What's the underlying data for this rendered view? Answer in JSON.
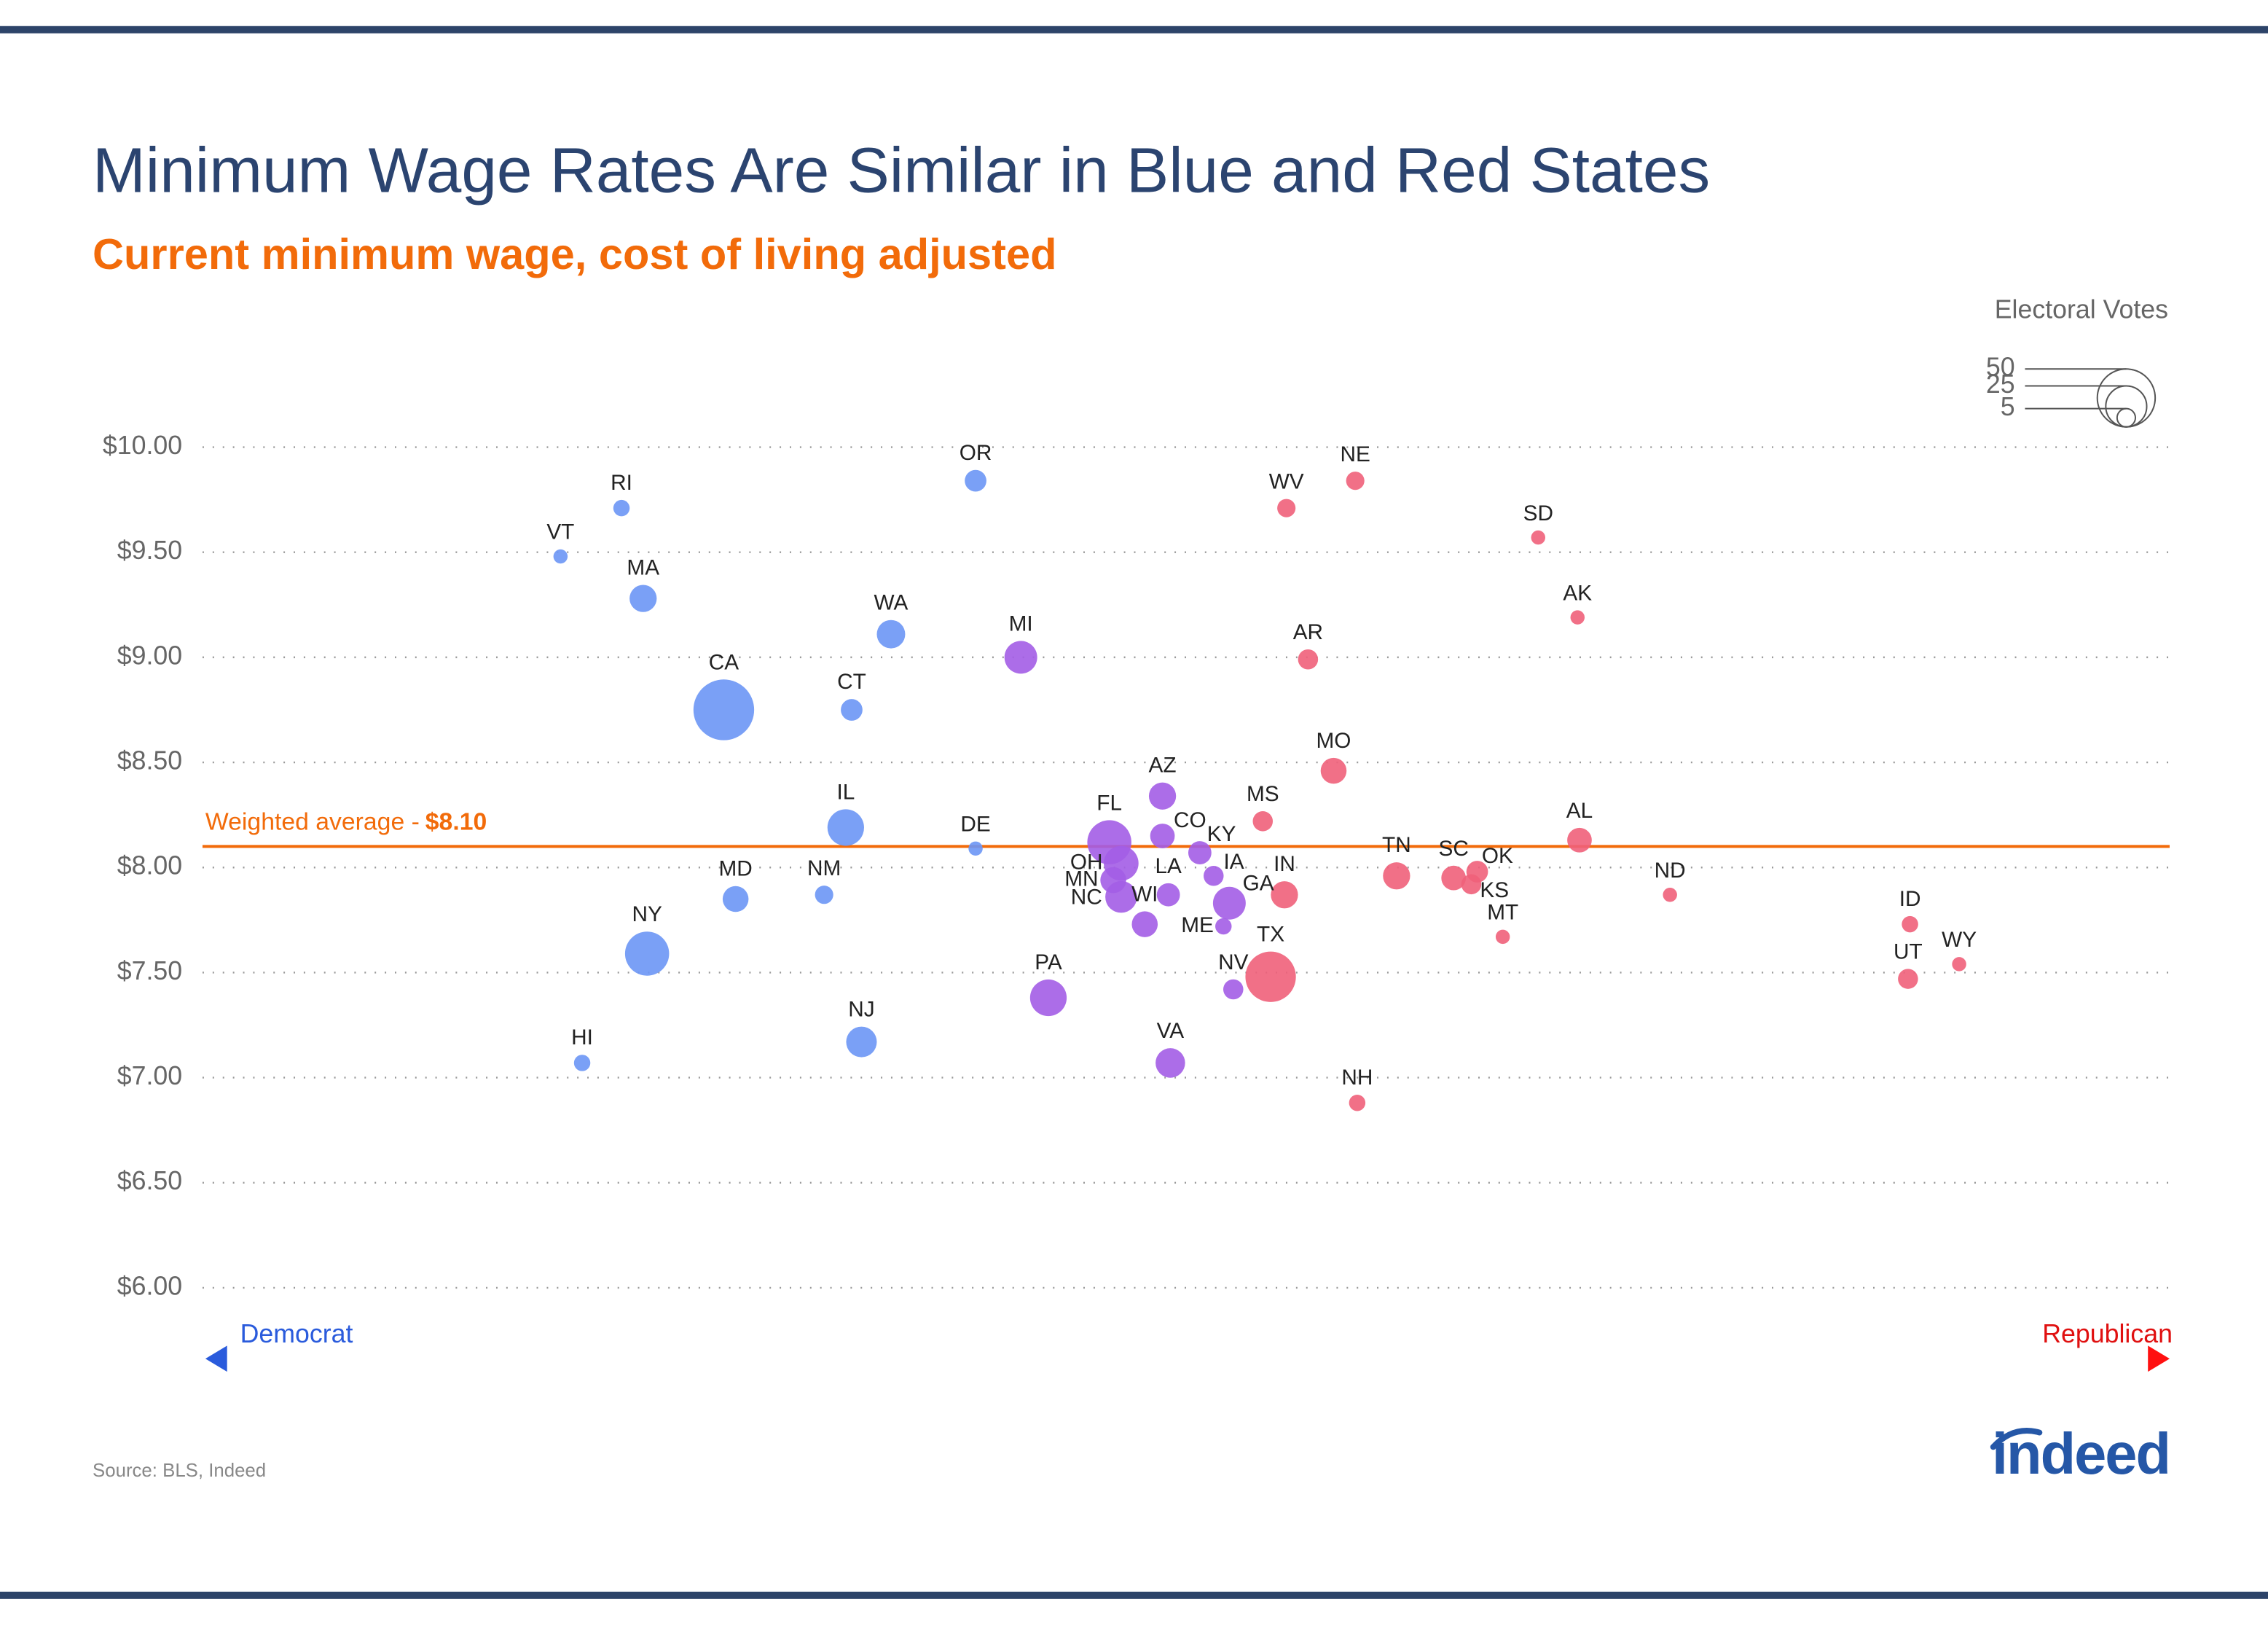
{
  "chart_data": {
    "type": "scatter",
    "title": "Minimum Wage Rates Are Similar in Blue and Red States",
    "subtitle": "Current minimum wage, cost of living adjusted",
    "size_legend_title": "Electoral Votes",
    "size_legend_values": [
      50,
      25,
      5
    ],
    "categories": [
      "VT",
      "RI",
      "MA",
      "CA",
      "HI",
      "NY",
      "MD",
      "NM",
      "IL",
      "CT",
      "WA",
      "OR",
      "DE",
      "NJ",
      "MI",
      "PA",
      "FL",
      "OH",
      "MN",
      "NC",
      "WI",
      "AZ",
      "CO",
      "LA",
      "VA",
      "KY",
      "IA",
      "ME",
      "GA",
      "NV",
      "MS",
      "TX",
      "IN",
      "WV",
      "AR",
      "NE",
      "MO",
      "NH",
      "TN",
      "SC",
      "KS",
      "OK",
      "MT",
      "SD",
      "AK",
      "AL",
      "ND",
      "ID",
      "UT",
      "WY"
    ],
    "x": [
      18.2,
      21.3,
      22.4,
      26.5,
      19.3,
      22.6,
      27.1,
      31.6,
      32.7,
      33.0,
      35.0,
      39.3,
      39.3,
      33.5,
      41.6,
      43.0,
      46.1,
      46.7,
      46.3,
      46.7,
      47.9,
      48.8,
      48.8,
      49.1,
      49.2,
      50.7,
      51.4,
      51.9,
      52.2,
      52.4,
      53.9,
      54.3,
      55.0,
      55.1,
      56.2,
      58.6,
      57.5,
      58.7,
      60.7,
      63.6,
      64.5,
      64.8,
      66.1,
      67.9,
      69.9,
      70.0,
      74.6,
      86.8,
      86.7,
      89.3
    ],
    "values": [
      9.48,
      9.71,
      9.28,
      8.75,
      7.07,
      7.59,
      7.85,
      7.87,
      8.19,
      8.75,
      9.11,
      9.84,
      8.09,
      7.17,
      9.0,
      7.38,
      8.12,
      8.02,
      7.94,
      7.86,
      7.73,
      8.34,
      8.15,
      7.87,
      7.07,
      8.07,
      7.96,
      7.72,
      7.83,
      7.42,
      8.22,
      7.48,
      7.87,
      9.71,
      8.99,
      9.84,
      8.46,
      6.88,
      7.96,
      7.95,
      7.92,
      7.98,
      7.67,
      9.57,
      9.19,
      8.13,
      7.87,
      7.73,
      7.47,
      7.54
    ],
    "sizes": [
      3,
      4,
      11,
      55,
      4,
      29,
      10,
      5,
      20,
      7,
      12,
      7,
      3,
      14,
      16,
      20,
      29,
      18,
      10,
      15,
      10,
      11,
      9,
      8,
      13,
      8,
      6,
      4,
      16,
      6,
      6,
      38,
      11,
      5,
      6,
      5,
      10,
      4,
      11,
      9,
      6,
      7,
      3,
      3,
      3,
      9,
      3,
      4,
      6,
      3
    ],
    "colors": [
      "#6b96f5",
      "#6b96f5",
      "#6b96f5",
      "#6b96f5",
      "#6b96f5",
      "#6b96f5",
      "#6b96f5",
      "#6b96f5",
      "#6b96f5",
      "#6b96f5",
      "#6b96f5",
      "#6b96f5",
      "#6b96f5",
      "#6b96f5",
      "#a35de6",
      "#a35de6",
      "#a35de6",
      "#a35de6",
      "#a35de6",
      "#a35de6",
      "#a35de6",
      "#a35de6",
      "#a35de6",
      "#a35de6",
      "#a35de6",
      "#a35de6",
      "#a35de6",
      "#a35de6",
      "#a35de6",
      "#a35de6",
      "#f0607a",
      "#f0607a",
      "#f0607a",
      "#f0607a",
      "#f0607a",
      "#f0607a",
      "#f0607a",
      "#f0607a",
      "#f0607a",
      "#f0607a",
      "#f0607a",
      "#f0607a",
      "#f0607a",
      "#f0607a",
      "#f0607a",
      "#f0607a",
      "#f0607a",
      "#f0607a",
      "#f0607a",
      "#f0607a"
    ],
    "xlim": [
      0,
      100
    ],
    "ylim": [
      6,
      10
    ],
    "yticks": [
      {
        "value": 10,
        "label": "$10.00"
      },
      {
        "value": 9.5,
        "label": "$9.50"
      },
      {
        "value": 9,
        "label": "$9.00"
      },
      {
        "value": 8.5,
        "label": "$8.50"
      },
      {
        "value": 8,
        "label": "$8.00"
      },
      {
        "value": 7.5,
        "label": "$7.50"
      },
      {
        "value": 7,
        "label": "$7.00"
      },
      {
        "value": 6.5,
        "label": "$6.50"
      },
      {
        "value": 6,
        "label": "$6.00"
      }
    ],
    "grid": true,
    "reference_line": {
      "label": "Weighted average -",
      "value": 8.1,
      "value_label": "$8.10",
      "color": "#f26b0a"
    },
    "x_axis_left_label": "Democrat",
    "x_axis_right_label": "Republican",
    "source": "Source: BLS, Indeed",
    "logo": "indeed"
  }
}
